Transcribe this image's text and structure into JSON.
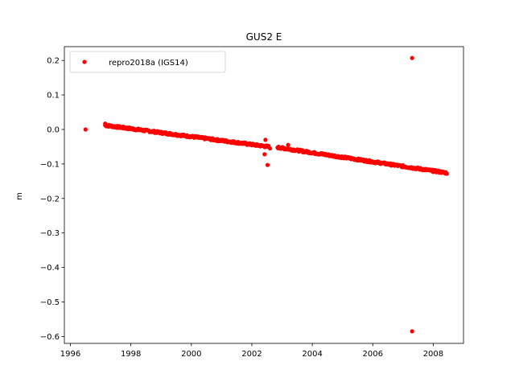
{
  "chart_data": {
    "type": "scatter",
    "title": "GUS2 E",
    "xlabel": "",
    "ylabel": "m",
    "xlim": [
      1995.8,
      2009.0
    ],
    "ylim": [
      -0.62,
      0.24
    ],
    "x_ticks": [
      1996,
      1998,
      2000,
      2002,
      2004,
      2006,
      2008
    ],
    "y_ticks": [
      0.2,
      0.1,
      0.0,
      -0.1,
      -0.2,
      -0.3,
      -0.4,
      -0.5,
      -0.6
    ],
    "y_tick_labels": [
      "0.2",
      "0.1",
      "0.0",
      "−0.1",
      "−0.2",
      "−0.3",
      "−0.4",
      "−0.5",
      "−0.6"
    ],
    "grid": false,
    "legend_position": "top-left",
    "colors": {
      "series": "#ff0000",
      "axes": "#000000",
      "background": "#ffffff"
    },
    "series": [
      {
        "name": "repro2018a (IGS14)",
        "marker": "dot",
        "trend_segments": [
          {
            "x_start": 1997.15,
            "x_end": 2002.55,
            "y_start": 0.012,
            "y_end": -0.05,
            "noise": 0.003
          },
          {
            "x_start": 2002.85,
            "x_end": 2008.45,
            "y_start": -0.052,
            "y_end": -0.126,
            "noise": 0.003
          }
        ],
        "points": [
          {
            "x": 1996.5,
            "y": 0.0
          },
          {
            "x": 1997.15,
            "y": 0.017
          },
          {
            "x": 2002.45,
            "y": -0.03
          },
          {
            "x": 2002.42,
            "y": -0.072
          },
          {
            "x": 2002.52,
            "y": -0.103
          },
          {
            "x": 2002.6,
            "y": -0.055
          },
          {
            "x": 2003.2,
            "y": -0.045
          },
          {
            "x": 2007.3,
            "y": 0.207
          },
          {
            "x": 2007.3,
            "y": -0.585
          }
        ]
      }
    ]
  }
}
